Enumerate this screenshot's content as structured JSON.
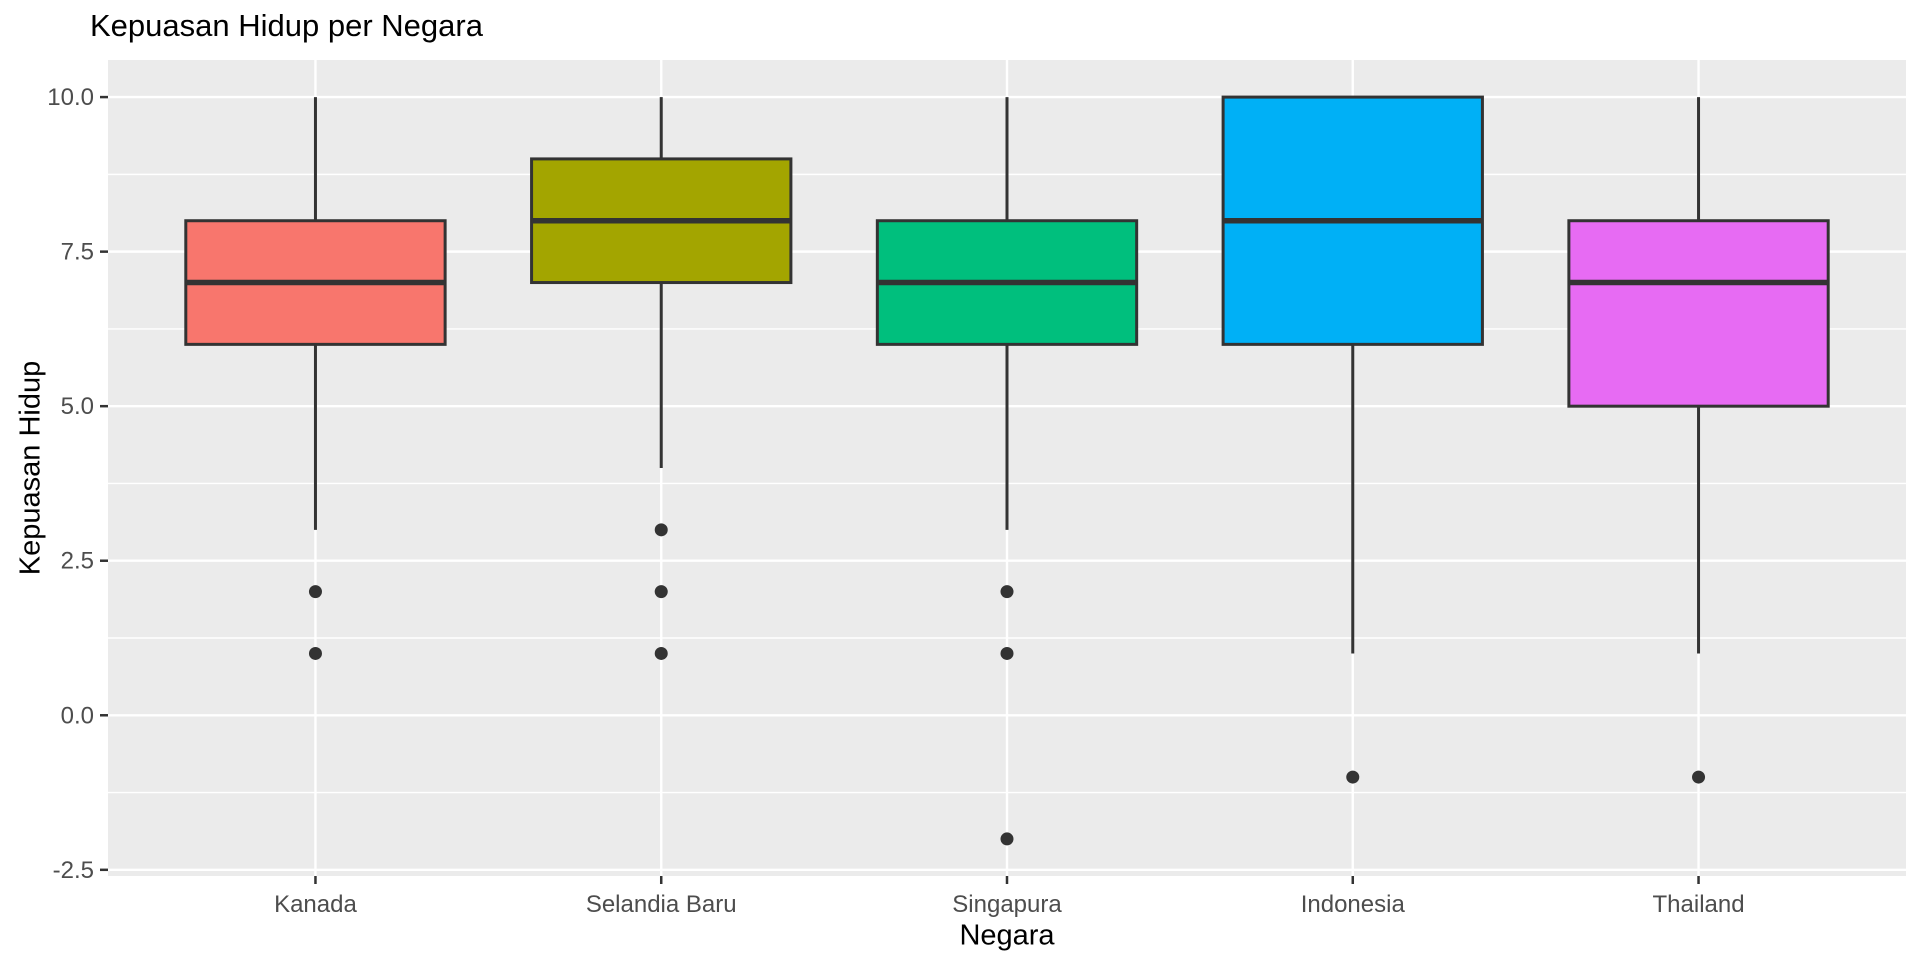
{
  "chart_data": {
    "type": "boxplot",
    "title": "Kepuasan Hidup per Negara",
    "xlabel": "Negara",
    "ylabel": "Kepuasan Hidup",
    "categories": [
      "Kanada",
      "Selandia Baru",
      "Singapura",
      "Indonesia",
      "Thailand"
    ],
    "series": [
      {
        "name": "Kanada",
        "q1": 6,
        "median": 7,
        "q3": 8,
        "whisker_low": 3,
        "whisker_high": 10,
        "outliers": [
          2,
          1
        ],
        "fill": "#F8766D"
      },
      {
        "name": "Selandia Baru",
        "q1": 7,
        "median": 8,
        "q3": 9,
        "whisker_low": 4,
        "whisker_high": 10,
        "outliers": [
          3,
          2,
          1
        ],
        "fill": "#A3A500"
      },
      {
        "name": "Singapura",
        "q1": 6,
        "median": 7,
        "q3": 8,
        "whisker_low": 3,
        "whisker_high": 10,
        "outliers": [
          2,
          1,
          -2
        ],
        "fill": "#00BF7D"
      },
      {
        "name": "Indonesia",
        "q1": 6,
        "median": 8,
        "q3": 10,
        "whisker_low": 1,
        "whisker_high": 10,
        "outliers": [
          -1
        ],
        "fill": "#00B0F6"
      },
      {
        "name": "Thailand",
        "q1": 5,
        "median": 7,
        "q3": 8,
        "whisker_low": 1,
        "whisker_high": 10,
        "outliers": [
          -1
        ],
        "fill": "#E76BF3"
      }
    ],
    "y_ticks": [
      {
        "value": 10,
        "label": "10.0"
      },
      {
        "value": 7.5,
        "label": "7.5"
      },
      {
        "value": 5,
        "label": "5.0"
      },
      {
        "value": 2.5,
        "label": "2.5"
      },
      {
        "value": 0,
        "label": "0.0"
      },
      {
        "value": -2.5,
        "label": "-2.5"
      }
    ],
    "y_minor_ticks": [
      8.75,
      6.25,
      3.75,
      1.25,
      -1.25
    ],
    "ylim": [
      -2.6,
      10.6
    ],
    "grid": true,
    "legend": false,
    "colors": {
      "panel_background": "#EBEBEB",
      "grid_major": "#FFFFFF",
      "grid_minor": "#FFFFFF",
      "box_stroke": "#333333",
      "median_stroke": "#333333",
      "whisker_stroke": "#333333",
      "outlier_fill": "#333333",
      "tick_mark": "#333333",
      "tick_label": "#4D4D4D",
      "title_color": "#000000",
      "page_background": "#FFFFFF"
    }
  }
}
